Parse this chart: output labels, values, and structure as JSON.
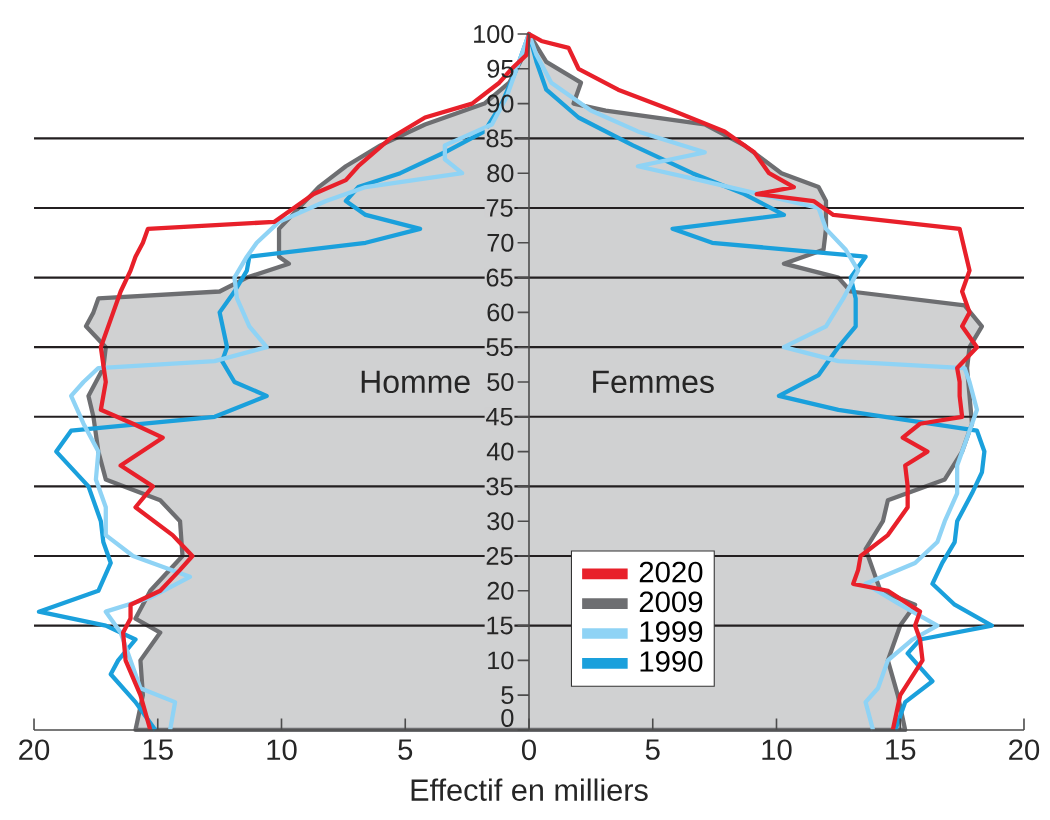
{
  "chart_data": {
    "type": "line",
    "xlabel": "Effectif en milliers",
    "annotations": [
      "Homme",
      "Femmes"
    ],
    "xlim": [
      -20,
      20
    ],
    "xticks": [
      {
        "value": -20,
        "label": "20"
      },
      {
        "value": -15,
        "label": "15"
      },
      {
        "value": -10,
        "label": "10"
      },
      {
        "value": -5,
        "label": "5"
      },
      0,
      5,
      10,
      15,
      20
    ],
    "ylim": [
      0,
      100
    ],
    "yticks": [
      0,
      5,
      10,
      15,
      20,
      25,
      30,
      35,
      40,
      45,
      50,
      55,
      60,
      65,
      70,
      75,
      80,
      85,
      90,
      95,
      100
    ],
    "ref_lines": [
      {
        "axis": "y",
        "value": 15,
        "color": "#231f20"
      },
      {
        "axis": "y",
        "value": 25,
        "color": "#231f20"
      },
      {
        "axis": "y",
        "value": 35,
        "color": "#231f20"
      },
      {
        "axis": "y",
        "value": 45,
        "color": "#231f20"
      },
      {
        "axis": "y",
        "value": 55,
        "color": "#231f20"
      },
      {
        "axis": "y",
        "value": 65,
        "color": "#231f20"
      },
      {
        "axis": "y",
        "value": 75,
        "color": "#231f20"
      },
      {
        "axis": "y",
        "value": 85,
        "color": "#231f20"
      }
    ],
    "legend": "bottom",
    "grid": false,
    "marker": "none",
    "series": [
      {
        "name": "2020",
        "color": "#e8202a",
        "x": [
          -15.3,
          -15.7,
          -16.3,
          -16.4,
          -16.1,
          -16.1,
          -14.9,
          -14.1,
          -13.6,
          -14.4,
          -15.9,
          -15.2,
          -16.5,
          -14.8,
          -16.0,
          -17.3,
          -17.1,
          -17.3,
          -16.8,
          -16.5,
          -16.1,
          -15.9,
          -15.6,
          -15.4,
          -10.3,
          -9.5,
          -8.7,
          -7.4,
          -6.9,
          -5.6,
          -4.2,
          -2.3,
          -1.2,
          -0.7,
          -0.1,
          0,
          0,
          0.5,
          1.6,
          2.0,
          3.6,
          5.8,
          7.9,
          9.1,
          9.7,
          10.7,
          9.2,
          11.5,
          12.3,
          17.4,
          17.6,
          17.8,
          17.5,
          17.8,
          17.5,
          18.1,
          17.3,
          17.4,
          17.4,
          17.5,
          15.8,
          15.1,
          16.1,
          15.2,
          15.3,
          15.3,
          14.5,
          13.4,
          13.3,
          13.1,
          14.5,
          15.8,
          15.6,
          15.8,
          15.9,
          15.0,
          14.7
        ],
        "values": [
          0,
          5,
          10,
          14,
          16,
          18,
          20,
          23,
          25,
          28,
          32,
          35,
          38,
          42,
          44,
          46,
          50,
          55,
          60,
          63,
          66,
          68,
          70,
          72,
          73,
          75,
          77,
          79,
          81,
          85,
          88,
          90,
          93,
          95,
          97,
          100,
          100,
          99,
          98,
          95,
          92,
          89,
          86,
          83,
          80,
          78,
          77,
          76,
          74,
          72,
          69,
          66,
          63,
          60,
          58,
          55,
          52,
          50,
          48,
          45,
          44,
          42,
          40,
          38,
          35,
          32,
          28,
          25,
          23,
          21,
          20,
          17,
          15,
          13,
          10,
          5,
          0
        ]
      },
      {
        "name": "2009",
        "type": "area",
        "color": "#6d6e71",
        "x": [
          -15.9,
          -15.6,
          -15.7,
          -14.9,
          -15.9,
          -15.3,
          -14.0,
          -14.1,
          -14.9,
          -17.1,
          -17.4,
          -17.6,
          -17.8,
          -17.2,
          -17.1,
          -17.9,
          -17.6,
          -17.4,
          -12.5,
          -11.4,
          -9.7,
          -10.1,
          -10.1,
          -9.3,
          -8.5,
          -7.4,
          -6.0,
          -4.2,
          -1.8,
          -0.8,
          -0.2,
          0,
          0,
          0.7,
          2.1,
          1.8,
          3.1,
          7.1,
          8.7,
          10.2,
          11.7,
          12.0,
          12.0,
          11.9,
          10.3,
          12.5,
          13.0,
          17.6,
          18.3,
          17.8,
          17.7,
          17.8,
          17.9,
          17.5,
          16.8,
          14.5,
          14.3,
          13.6,
          13.9,
          14.2,
          15.6,
          15.0,
          14.8,
          14.5,
          14.9,
          15.2
        ],
        "values": [
          0,
          5,
          10,
          14,
          16,
          20,
          25,
          30,
          33,
          36,
          40,
          45,
          48,
          52,
          55,
          58,
          60,
          62,
          63,
          65,
          67,
          68,
          72,
          75,
          78,
          81,
          84,
          87,
          90,
          93,
          97,
          100,
          100,
          96,
          93,
          90,
          89,
          87,
          84,
          80,
          78,
          76,
          72,
          69,
          67,
          65,
          63,
          61,
          58,
          55,
          52,
          48,
          44,
          40,
          36,
          33,
          30,
          26,
          23,
          20,
          18,
          15,
          13,
          10,
          5,
          0
        ]
      },
      {
        "name": "1999",
        "color": "#8fd3f5",
        "x": [
          -14.5,
          -14.3,
          -15.7,
          -16.1,
          -16.5,
          -17.1,
          -15.3,
          -13.7,
          -16.0,
          -17.1,
          -17.1,
          -17.5,
          -17.4,
          -18.0,
          -18.5,
          -18.0,
          -17.4,
          -12.7,
          -10.6,
          -11.3,
          -11.8,
          -11.9,
          -11.4,
          -11.0,
          -10.1,
          -8.2,
          -6.6,
          -2.7,
          -3.4,
          -3.4,
          -1.5,
          -0.9,
          -0.5,
          0,
          0,
          0.3,
          0.9,
          2.5,
          4.4,
          7.1,
          4.4,
          6.9,
          9.3,
          11.7,
          12.0,
          12.8,
          13.3,
          12.7,
          12.0,
          10.3,
          12.5,
          17.6,
          17.8,
          18.1,
          17.7,
          17.3,
          17.3,
          16.8,
          16.5,
          15.6,
          13.6,
          15.0,
          16.5,
          15.5,
          14.5,
          14.1,
          13.6,
          13.9
        ],
        "values": [
          0,
          4,
          6,
          10,
          14,
          17,
          19,
          22,
          25,
          28,
          32,
          36,
          40,
          44,
          48,
          50,
          52,
          53,
          55,
          58,
          62,
          65,
          68,
          70,
          73,
          76,
          78,
          80,
          82,
          84,
          87,
          91,
          95,
          100,
          100,
          97,
          93,
          89,
          86,
          83,
          81,
          79,
          77,
          75,
          72,
          69,
          66,
          62,
          58,
          55,
          53,
          52,
          50,
          46,
          42,
          38,
          34,
          30,
          27,
          24,
          21,
          18,
          15,
          13,
          10,
          6,
          4,
          0
        ]
      },
      {
        "name": "1990",
        "color": "#1aa0dc",
        "x": [
          -15.1,
          -15.9,
          -16.9,
          -16.6,
          -15.9,
          -17.1,
          -19.8,
          -17.4,
          -16.9,
          -17.2,
          -17.3,
          -17.8,
          -19.1,
          -18.5,
          -12.7,
          -10.6,
          -11.9,
          -12.4,
          -12.2,
          -12.5,
          -11.9,
          -11.4,
          -11.3,
          -6.6,
          -4.4,
          -6.6,
          -7.4,
          -6.9,
          -5.2,
          -3.4,
          -1.8,
          -1.1,
          -0.5,
          0,
          0,
          0.3,
          0.7,
          2.0,
          4.2,
          6.6,
          8.7,
          10.3,
          5.8,
          7.4,
          13.6,
          13.0,
          13.2,
          13.2,
          12.5,
          12.1,
          11.7,
          10.1,
          12.5,
          18.1,
          18.4,
          18.3,
          17.9,
          17.3,
          17.2,
          16.7,
          16.3,
          17.2,
          18.7,
          15.8,
          15.3,
          15.8,
          16.3,
          15.2,
          14.8
        ],
        "values": [
          0,
          4,
          8,
          10,
          13,
          15,
          17,
          20,
          24,
          27,
          30,
          35,
          40,
          43,
          45,
          48,
          50,
          53,
          55,
          60,
          63,
          66,
          68,
          70,
          72,
          74,
          76,
          78,
          80,
          83,
          86,
          90,
          95,
          100,
          100,
          96,
          92,
          88,
          84,
          80,
          77,
          74,
          72,
          70,
          68,
          65,
          62,
          58,
          55,
          53,
          51,
          48,
          46,
          43,
          40,
          37,
          34,
          30,
          27,
          24,
          21,
          18,
          15,
          13,
          11,
          9,
          7,
          4,
          0
        ]
      }
    ]
  }
}
